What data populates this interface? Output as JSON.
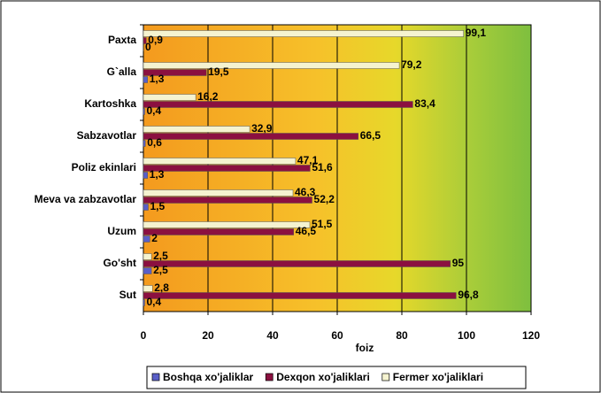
{
  "chart_data": {
    "type": "bar",
    "orientation": "horizontal",
    "categories": [
      "Paxta",
      "G`alla",
      "Kartoshka",
      "Sabzavotlar",
      "Poliz ekinlari",
      "Meva va zabzavotlar",
      "Uzum",
      "Go'sht",
      "Sut"
    ],
    "series": [
      {
        "name": "Boshqa xo'jaliklar",
        "color": "#5a5fc8",
        "values": [
          0,
          1.3,
          0.4,
          0.6,
          1.3,
          1.5,
          2,
          2.5,
          0.4
        ],
        "value_labels": [
          "0",
          "1,3",
          "0,4",
          "0,6",
          "1,3",
          "1,5",
          "2",
          "2,5",
          "0,4"
        ]
      },
      {
        "name": "Dexqon xo'jaliklari",
        "color": "#8b1040",
        "values": [
          0.9,
          19.5,
          83.4,
          66.5,
          51.6,
          52.2,
          46.5,
          95,
          96.8
        ],
        "value_labels": [
          "0,9",
          "19,5",
          "83,4",
          "66,5",
          "51,6",
          "52,2",
          "46,5",
          "95",
          "96,8"
        ]
      },
      {
        "name": "Fermer xo'jaliklari",
        "color": "#f5f3d0",
        "values": [
          99.1,
          79.2,
          16.2,
          32.9,
          47.1,
          46.3,
          51.5,
          2.5,
          2.8
        ],
        "value_labels": [
          "99,1",
          "79,2",
          "16,2",
          "32,9",
          "47,1",
          "46,3",
          "51,5",
          "2,5",
          "2,8"
        ]
      }
    ],
    "x_label": "foiz",
    "xlim": [
      0,
      120
    ],
    "xticks": [
      0,
      20,
      40,
      60,
      80,
      100,
      120
    ],
    "grid": true,
    "legend": "bottom"
  }
}
